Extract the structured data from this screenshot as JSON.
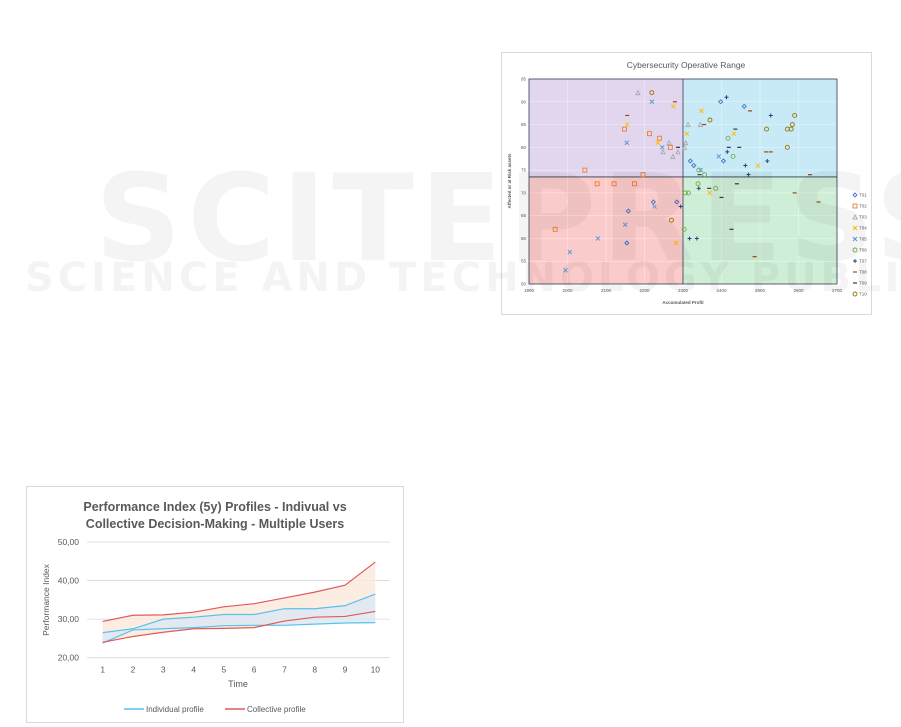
{
  "watermark": {
    "main": "SCITEPRESS",
    "sub": "SCIENCE AND TECHNOLOGY PUBLICATIONS"
  },
  "chart_data": [
    {
      "type": "scatter",
      "title": "Cybersecurity Operative Range",
      "xlabel": "Accumulated Profit",
      "ylabel": "Affected or at Risk assets",
      "xlim": [
        1900,
        2700
      ],
      "ylim": [
        50,
        95
      ],
      "xticks": [
        1900,
        2000,
        2100,
        2200,
        2300,
        2400,
        2500,
        2600,
        2700
      ],
      "yticks": [
        50,
        55,
        60,
        65,
        70,
        75,
        80,
        85,
        90,
        95
      ],
      "grid": true,
      "legend_position": "right",
      "quadrant_split": {
        "x": 2300,
        "y": 73.5
      },
      "quadrant_colors": {
        "top_left": "#e2d6ee",
        "top_right": "#c8eaf7",
        "bottom_left": "#fbcaca",
        "bottom_right": "#cfeed8"
      },
      "series": [
        {
          "name": "T01",
          "marker": "diamond",
          "color": "#4472c4",
          "points": [
            [
              2398,
              90
            ],
            [
              2459,
              89
            ],
            [
              2319,
              77
            ],
            [
              2328,
              76
            ],
            [
              2405,
              77
            ],
            [
              2223,
              68
            ],
            [
              2158,
              66
            ],
            [
              2154,
              59
            ],
            [
              2284,
              68
            ]
          ]
        },
        {
          "name": "T02",
          "marker": "square",
          "color": "#ed7d31",
          "points": [
            [
              2148,
              84
            ],
            [
              2213,
              83
            ],
            [
              2239,
              82
            ],
            [
              2267,
              80
            ],
            [
              2045,
              75
            ],
            [
              2196,
              74
            ],
            [
              2077,
              72
            ],
            [
              2121,
              72
            ],
            [
              2174,
              72
            ],
            [
              1968,
              62
            ]
          ]
        },
        {
          "name": "T03",
          "marker": "triangle",
          "color": "#a5a5a5",
          "points": [
            [
              2183,
              92
            ],
            [
              2313,
              85
            ],
            [
              2345,
              85
            ],
            [
              2264,
              81
            ],
            [
              2307,
              81
            ],
            [
              2248,
              79
            ],
            [
              2287,
              79
            ],
            [
              2274,
              78
            ],
            [
              2304,
              80
            ]
          ]
        },
        {
          "name": "T04",
          "marker": "x",
          "color": "#ffc000",
          "points": [
            [
              2275,
              89
            ],
            [
              2348,
              88
            ],
            [
              2155,
              85
            ],
            [
              2310,
              83
            ],
            [
              2235,
              81
            ],
            [
              2432,
              83
            ],
            [
              2495,
              76
            ],
            [
              2369,
              70
            ],
            [
              2282,
              59
            ]
          ]
        },
        {
          "name": "T05",
          "marker": "x",
          "color": "#5b9bd5",
          "points": [
            [
              2219,
              90
            ],
            [
              2154,
              81
            ],
            [
              2246,
              80
            ],
            [
              2393,
              78
            ],
            [
              2346,
              75
            ],
            [
              2226,
              67
            ],
            [
              2150,
              63
            ],
            [
              2079,
              60
            ],
            [
              2006,
              57
            ],
            [
              1995,
              53
            ]
          ]
        },
        {
          "name": "T06",
          "marker": "circle",
          "color": "#70ad47",
          "points": [
            [
              2417,
              82
            ],
            [
              2430,
              78
            ],
            [
              2341,
              75
            ],
            [
              2356,
              74
            ],
            [
              2339,
              72
            ],
            [
              2385,
              71
            ],
            [
              2306,
              70
            ],
            [
              2314,
              70
            ],
            [
              2303,
              62
            ]
          ]
        },
        {
          "name": "T07",
          "marker": "plus",
          "color": "#264478",
          "points": [
            [
              2413,
              91
            ],
            [
              2528,
              87
            ],
            [
              2415,
              79
            ],
            [
              2462,
              76
            ],
            [
              2519,
              77
            ],
            [
              2470,
              74
            ],
            [
              2341,
              71
            ],
            [
              2294,
              67
            ],
            [
              2317,
              60
            ],
            [
              2336,
              60
            ]
          ]
        },
        {
          "name": "T08",
          "marker": "dash",
          "color": "#9e480e",
          "points": [
            [
              2279,
              90
            ],
            [
              2155,
              87
            ],
            [
              2355,
              85
            ],
            [
              2474,
              88
            ],
            [
              2516,
              79
            ],
            [
              2528,
              79
            ],
            [
              2630,
              74
            ],
            [
              2590,
              70
            ],
            [
              2652,
              68
            ],
            [
              2486,
              56
            ]
          ]
        },
        {
          "name": "T09",
          "marker": "dash",
          "color": "#3a3a3a",
          "points": [
            [
              2287,
              80
            ],
            [
              2419,
              80
            ],
            [
              2446,
              80
            ],
            [
              2436,
              84
            ],
            [
              2343,
              74
            ],
            [
              2368,
              71
            ],
            [
              2400,
              69
            ],
            [
              2440,
              72
            ],
            [
              2426,
              62
            ]
          ]
        },
        {
          "name": "T10",
          "marker": "circle",
          "color": "#997300",
          "points": [
            [
              2219,
              92
            ],
            [
              2370,
              86
            ],
            [
              2590,
              87
            ],
            [
              2584,
              85
            ],
            [
              2517,
              84
            ],
            [
              2571,
              84
            ],
            [
              2581,
              84
            ],
            [
              2571,
              80
            ],
            [
              2270,
              64
            ]
          ]
        }
      ]
    },
    {
      "type": "line",
      "title": "Performance Index (5y) Profiles - Indivual vs Collective Decision-Making - Multiple Users",
      "title_lines": [
        "Performance Index (5y) Profiles - Indivual vs",
        "Collective Decision-Making - Multiple Users"
      ],
      "xlabel": "Time",
      "ylabel": "Performance Index",
      "categories": [
        1,
        2,
        3,
        4,
        5,
        6,
        7,
        8,
        9,
        10
      ],
      "ylim": [
        20,
        50
      ],
      "yticks": [
        "20,00",
        "30,00",
        "40,00",
        "50,00"
      ],
      "grid": true,
      "legend_position": "bottom",
      "series": [
        {
          "name": "Individual profile",
          "color": "#5bc0eb",
          "fill": "#dbe7f3",
          "upper": [
            26.5,
            27.5,
            30.0,
            30.5,
            31.2,
            31.2,
            32.7,
            32.7,
            33.5,
            36.5
          ],
          "lower": [
            23.8,
            27.2,
            27.5,
            27.8,
            28.3,
            28.4,
            28.4,
            28.7,
            29.0,
            29.1
          ]
        },
        {
          "name": "Collective profile",
          "color": "#e05a5a",
          "fill": "#fbe8dc",
          "upper": [
            29.4,
            31.0,
            31.1,
            31.8,
            33.2,
            34.0,
            35.5,
            37.0,
            38.8,
            44.8
          ],
          "lower": [
            24.0,
            25.5,
            26.6,
            27.5,
            27.6,
            27.8,
            29.5,
            30.5,
            30.7,
            32.0
          ]
        }
      ]
    }
  ]
}
